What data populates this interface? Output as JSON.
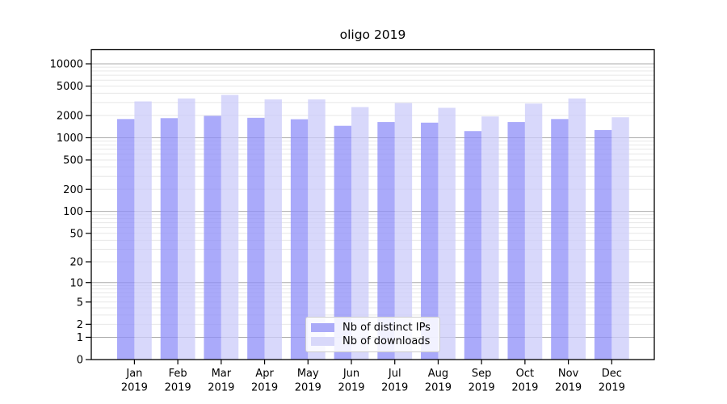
{
  "chart_data": {
    "type": "bar",
    "title": "oligo 2019",
    "categories": [
      "Jan 2019",
      "Feb 2019",
      "Mar 2019",
      "Apr 2019",
      "May 2019",
      "Jun 2019",
      "Jul 2019",
      "Aug 2019",
      "Sep 2019",
      "Oct 2019",
      "Nov 2019",
      "Dec 2019"
    ],
    "series": [
      {
        "name": "Nb of distinct IPs",
        "values": [
          1790,
          1840,
          1980,
          1860,
          1780,
          1450,
          1630,
          1600,
          1230,
          1630,
          1790,
          1270
        ]
      },
      {
        "name": "Nb of downloads",
        "values": [
          3100,
          3400,
          3800,
          3300,
          3300,
          2600,
          2950,
          2540,
          1940,
          2900,
          3400,
          1890
        ]
      }
    ],
    "yscale": "log1p",
    "yticks": [
      0,
      1,
      2,
      5,
      10,
      20,
      50,
      100,
      200,
      500,
      1000,
      2000,
      5000,
      10000
    ],
    "ylim": [
      0,
      15000
    ],
    "xlabel": "",
    "ylabel": "",
    "grid": true,
    "legend_position": "bottom-center"
  },
  "colors": {
    "ips_bar": "rgba(143,143,248,0.76)",
    "downloads_bar": "rgba(204,204,250,0.76)",
    "ips_swatch": "#aaaaf8",
    "downloads_swatch": "#d8d8fa",
    "grid_major": "#ababab",
    "grid_minor": "#e7e7e7",
    "axis": "#000000",
    "text": "#000000"
  }
}
